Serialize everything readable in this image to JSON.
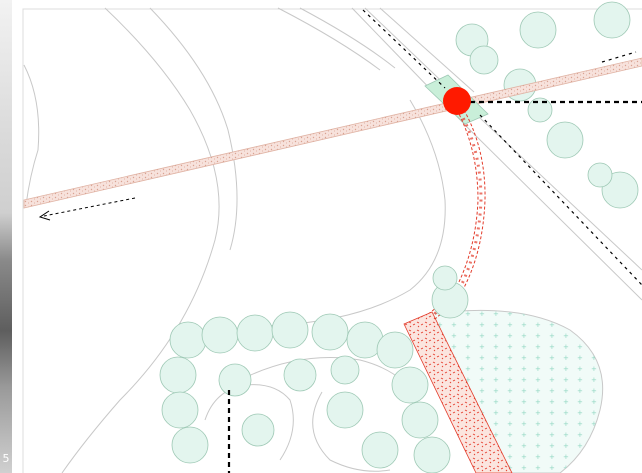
{
  "photo_strip": {
    "caption": "5"
  },
  "colors": {
    "background": "#ffffff",
    "terrain_line": "#c8c8c8",
    "path_fill": "#f7e2dc",
    "path_dots": "#d9a392",
    "tree_fill": "#e3f5ee",
    "tree_edge": "#9dc8b4",
    "trail_red": "#e33b2a",
    "marker_red": "#ff1a00",
    "plaza_green": "#c9efd9",
    "meadow_dots": "#8fd6c1",
    "dashed_black": "#000000"
  },
  "map": {
    "marker": {
      "name": "focus-point",
      "color": "#ff1a00"
    },
    "arrow_direction": "left"
  }
}
